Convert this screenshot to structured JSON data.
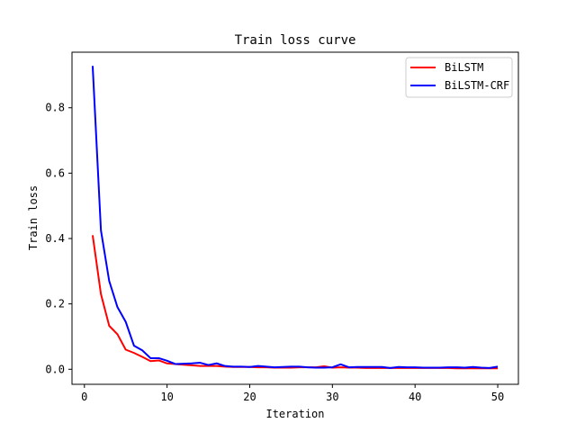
{
  "chart_data": {
    "type": "line",
    "title": "Train loss curve",
    "xlabel": "Iteration",
    "ylabel": "Train loss",
    "xlim": [
      -1.5,
      52.5
    ],
    "ylim": [
      -0.046,
      0.97
    ],
    "xticks": [
      0,
      10,
      20,
      30,
      40,
      50
    ],
    "yticks": [
      0.0,
      0.2,
      0.4,
      0.6,
      0.8
    ],
    "ytick_labels": [
      "0.0",
      "0.2",
      "0.4",
      "0.6",
      "0.8"
    ],
    "grid": false,
    "legend_position": "upper right",
    "x": [
      1,
      2,
      3,
      4,
      5,
      6,
      7,
      8,
      9,
      10,
      11,
      12,
      13,
      14,
      15,
      16,
      17,
      18,
      19,
      20,
      21,
      22,
      23,
      24,
      25,
      26,
      27,
      28,
      29,
      30,
      31,
      32,
      33,
      34,
      35,
      36,
      37,
      38,
      39,
      40,
      41,
      42,
      43,
      44,
      45,
      46,
      47,
      48,
      49,
      50
    ],
    "series": [
      {
        "name": "BiLSTM",
        "color": "#ff0000",
        "values": [
          0.41,
          0.23,
          0.133,
          0.107,
          0.06,
          0.05,
          0.038,
          0.025,
          0.027,
          0.018,
          0.016,
          0.014,
          0.012,
          0.01,
          0.01,
          0.01,
          0.008,
          0.007,
          0.007,
          0.007,
          0.006,
          0.006,
          0.005,
          0.005,
          0.005,
          0.006,
          0.006,
          0.006,
          0.009,
          0.005,
          0.006,
          0.005,
          0.005,
          0.004,
          0.004,
          0.004,
          0.004,
          0.004,
          0.004,
          0.004,
          0.004,
          0.004,
          0.004,
          0.004,
          0.003,
          0.003,
          0.003,
          0.003,
          0.003,
          0.003
        ]
      },
      {
        "name": "BiLSTM-CRF",
        "color": "#0000ff",
        "values": [
          0.928,
          0.425,
          0.27,
          0.19,
          0.145,
          0.072,
          0.058,
          0.034,
          0.034,
          0.026,
          0.016,
          0.017,
          0.018,
          0.02,
          0.013,
          0.018,
          0.01,
          0.008,
          0.008,
          0.007,
          0.01,
          0.008,
          0.006,
          0.007,
          0.008,
          0.008,
          0.006,
          0.005,
          0.005,
          0.006,
          0.015,
          0.006,
          0.007,
          0.007,
          0.007,
          0.007,
          0.004,
          0.007,
          0.006,
          0.006,
          0.005,
          0.005,
          0.005,
          0.006,
          0.006,
          0.005,
          0.007,
          0.005,
          0.004,
          0.008
        ]
      }
    ]
  }
}
